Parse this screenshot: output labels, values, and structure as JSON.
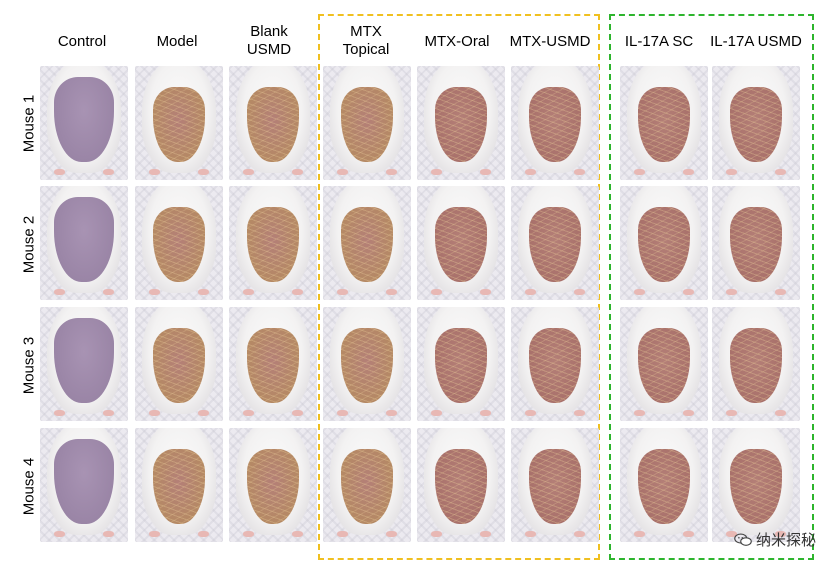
{
  "columns": [
    {
      "label": "Control"
    },
    {
      "label": "Model"
    },
    {
      "label": "Blank\nUSMD"
    },
    {
      "label": "MTX\nTopical"
    },
    {
      "label": "MTX-Oral"
    },
    {
      "label": "MTX-USMD"
    },
    {
      "label": "IL-17A SC"
    },
    {
      "label": "IL-17A USMD"
    }
  ],
  "rows": [
    {
      "label": "Mouse 1"
    },
    {
      "label": "Mouse 2"
    },
    {
      "label": "Mouse 3"
    },
    {
      "label": "Mouse 4"
    }
  ],
  "group_colors": {
    "mtx_group": "#f0c020",
    "il17a_group": "#2db52d"
  },
  "skin_colors": {
    "healthy": "#9a85a6",
    "lesion": "#a8706a",
    "lesion_scaly": "#b58a63"
  },
  "watermark": {
    "icon": "wechat-logo-icon",
    "text": "纳米探秘"
  }
}
